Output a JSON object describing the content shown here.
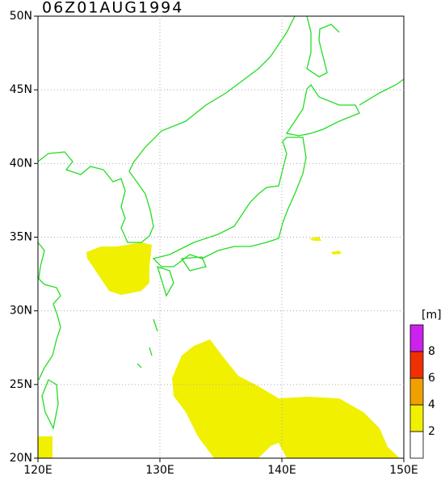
{
  "map": {
    "title": "06Z01AUG1994",
    "xlim": [
      120,
      150
    ],
    "ylim": [
      20,
      50
    ],
    "xticks": [
      {
        "value": 120,
        "label": "120E"
      },
      {
        "value": 130,
        "label": "130E"
      },
      {
        "value": 140,
        "label": "140E"
      },
      {
        "value": 150,
        "label": "150E"
      }
    ],
    "yticks": [
      {
        "value": 20,
        "label": "20N"
      },
      {
        "value": 25,
        "label": "25N"
      },
      {
        "value": 30,
        "label": "30N"
      },
      {
        "value": 35,
        "label": "35N"
      },
      {
        "value": 40,
        "label": "40N"
      },
      {
        "value": 45,
        "label": "45N"
      },
      {
        "value": 50,
        "label": "50N"
      }
    ],
    "grid": true,
    "colorbar": {
      "unit": "[m]",
      "levels": [
        2,
        4,
        6,
        8
      ],
      "colors": [
        "#ffffff",
        "#f0f000",
        "#f0a000",
        "#f03000",
        "#cc22ee"
      ]
    }
  }
}
